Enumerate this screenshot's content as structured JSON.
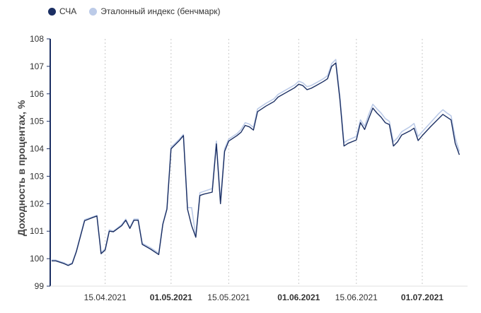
{
  "colors": {
    "nav": "#1b2f63",
    "benchmark": "#bccbe8",
    "axis": "#1b2f63",
    "grid": "#c9c9c9",
    "text": "#333333"
  },
  "chart_data": {
    "type": "line",
    "title": "",
    "xlabel": "",
    "ylabel": "Доходность в процентах, %",
    "ylim": [
      99,
      108
    ],
    "yticks": [
      99,
      100,
      101,
      102,
      103,
      104,
      105,
      106,
      107,
      108
    ],
    "x_range_days": [
      0,
      101
    ],
    "x_ticks": [
      {
        "day": 13,
        "label": "15.04.2021",
        "bold": false
      },
      {
        "day": 29,
        "label": "01.05.2021",
        "bold": true
      },
      {
        "day": 43,
        "label": "15.05.2021",
        "bold": false
      },
      {
        "day": 60,
        "label": "01.06.2021",
        "bold": true
      },
      {
        "day": 74,
        "label": "15.06.2021",
        "bold": false
      },
      {
        "day": 90,
        "label": "01.07.2021",
        "bold": true
      }
    ],
    "grid": "vertical dotted",
    "legend_position": "top-left",
    "series": [
      {
        "name": "СЧА",
        "key": "nav",
        "points": [
          [
            0,
            99.92
          ],
          [
            1,
            99.92
          ],
          [
            3,
            99.82
          ],
          [
            4,
            99.75
          ],
          [
            5,
            99.82
          ],
          [
            6,
            100.25
          ],
          [
            8,
            101.38
          ],
          [
            10,
            101.5
          ],
          [
            11,
            101.55
          ],
          [
            12,
            100.18
          ],
          [
            13,
            100.32
          ],
          [
            14,
            101.0
          ],
          [
            15,
            100.98
          ],
          [
            17,
            101.2
          ],
          [
            18,
            101.4
          ],
          [
            19,
            101.1
          ],
          [
            20,
            101.4
          ],
          [
            21,
            101.4
          ],
          [
            22,
            100.52
          ],
          [
            24,
            100.35
          ],
          [
            26,
            100.15
          ],
          [
            27,
            101.25
          ],
          [
            28,
            101.8
          ],
          [
            29,
            104.0
          ],
          [
            31,
            104.3
          ],
          [
            32,
            104.48
          ],
          [
            33,
            101.8
          ],
          [
            34,
            101.2
          ],
          [
            35,
            100.78
          ],
          [
            36,
            102.3
          ],
          [
            37,
            102.35
          ],
          [
            39,
            102.42
          ],
          [
            40,
            104.18
          ],
          [
            41,
            102.0
          ],
          [
            42,
            103.9
          ],
          [
            43,
            104.28
          ],
          [
            45,
            104.48
          ],
          [
            46,
            104.6
          ],
          [
            47,
            104.85
          ],
          [
            48,
            104.8
          ],
          [
            49,
            104.68
          ],
          [
            50,
            105.35
          ],
          [
            52,
            105.55
          ],
          [
            54,
            105.72
          ],
          [
            55,
            105.88
          ],
          [
            57,
            106.05
          ],
          [
            59,
            106.22
          ],
          [
            60,
            106.35
          ],
          [
            61,
            106.3
          ],
          [
            62,
            106.15
          ],
          [
            63,
            106.2
          ],
          [
            64,
            106.28
          ],
          [
            66,
            106.45
          ],
          [
            67,
            106.55
          ],
          [
            68,
            107.0
          ],
          [
            69,
            107.12
          ],
          [
            70,
            105.8
          ],
          [
            71,
            104.1
          ],
          [
            72,
            104.2
          ],
          [
            74,
            104.32
          ],
          [
            75,
            104.95
          ],
          [
            76,
            104.7
          ],
          [
            77,
            105.1
          ],
          [
            78,
            105.48
          ],
          [
            79,
            105.3
          ],
          [
            80,
            105.15
          ],
          [
            81,
            104.95
          ],
          [
            82,
            104.88
          ],
          [
            83,
            104.1
          ],
          [
            84,
            104.25
          ],
          [
            85,
            104.5
          ],
          [
            87,
            104.65
          ],
          [
            88,
            104.75
          ],
          [
            89,
            104.3
          ],
          [
            90,
            104.48
          ],
          [
            92,
            104.8
          ],
          [
            94,
            105.1
          ],
          [
            95,
            105.25
          ],
          [
            96,
            105.15
          ],
          [
            97,
            105.05
          ],
          [
            98,
            104.2
          ],
          [
            99,
            103.78
          ]
        ]
      },
      {
        "name": "Эталонный индекс (бенчмарк)",
        "key": "benchmark",
        "points": [
          [
            0,
            99.95
          ],
          [
            1,
            99.95
          ],
          [
            3,
            99.85
          ],
          [
            4,
            99.78
          ],
          [
            5,
            99.85
          ],
          [
            6,
            100.28
          ],
          [
            8,
            101.42
          ],
          [
            10,
            101.52
          ],
          [
            11,
            101.58
          ],
          [
            12,
            100.22
          ],
          [
            13,
            100.36
          ],
          [
            14,
            101.05
          ],
          [
            15,
            101.0
          ],
          [
            17,
            101.24
          ],
          [
            18,
            101.44
          ],
          [
            19,
            101.14
          ],
          [
            20,
            101.44
          ],
          [
            21,
            101.44
          ],
          [
            22,
            100.56
          ],
          [
            24,
            100.4
          ],
          [
            26,
            100.2
          ],
          [
            27,
            101.28
          ],
          [
            28,
            101.84
          ],
          [
            29,
            104.05
          ],
          [
            31,
            104.35
          ],
          [
            32,
            104.52
          ],
          [
            33,
            101.86
          ],
          [
            34,
            101.86
          ],
          [
            35,
            100.8
          ],
          [
            36,
            102.4
          ],
          [
            37,
            102.45
          ],
          [
            39,
            102.55
          ],
          [
            40,
            104.28
          ],
          [
            41,
            102.1
          ],
          [
            42,
            104.0
          ],
          [
            43,
            104.35
          ],
          [
            45,
            104.55
          ],
          [
            46,
            104.7
          ],
          [
            47,
            104.95
          ],
          [
            48,
            104.9
          ],
          [
            49,
            104.78
          ],
          [
            50,
            105.45
          ],
          [
            52,
            105.65
          ],
          [
            54,
            105.82
          ],
          [
            55,
            105.98
          ],
          [
            57,
            106.15
          ],
          [
            59,
            106.32
          ],
          [
            60,
            106.46
          ],
          [
            61,
            106.4
          ],
          [
            62,
            106.26
          ],
          [
            63,
            106.3
          ],
          [
            64,
            106.38
          ],
          [
            66,
            106.55
          ],
          [
            67,
            106.66
          ],
          [
            68,
            107.1
          ],
          [
            69,
            107.25
          ],
          [
            70,
            105.92
          ],
          [
            71,
            104.22
          ],
          [
            72,
            104.32
          ],
          [
            74,
            104.45
          ],
          [
            75,
            105.05
          ],
          [
            76,
            104.82
          ],
          [
            77,
            105.25
          ],
          [
            78,
            105.62
          ],
          [
            79,
            105.45
          ],
          [
            80,
            105.3
          ],
          [
            81,
            105.1
          ],
          [
            82,
            105.0
          ],
          [
            83,
            104.25
          ],
          [
            84,
            104.4
          ],
          [
            85,
            104.62
          ],
          [
            87,
            104.8
          ],
          [
            88,
            104.92
          ],
          [
            89,
            104.45
          ],
          [
            90,
            104.62
          ],
          [
            92,
            104.95
          ],
          [
            94,
            105.28
          ],
          [
            95,
            105.42
          ],
          [
            96,
            105.3
          ],
          [
            97,
            105.2
          ],
          [
            98,
            104.4
          ],
          [
            99,
            103.9
          ]
        ]
      }
    ]
  }
}
